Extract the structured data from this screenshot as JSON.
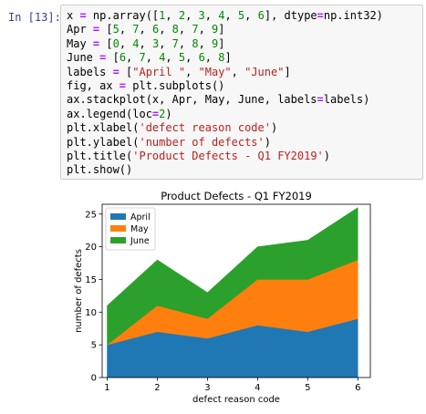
{
  "cell": {
    "prompt": "In [13]:",
    "code_lines": [
      "x = np.array([1, 2, 3, 4, 5, 6], dtype=np.int32)",
      "Apr = [5, 7, 6, 8, 7, 9]",
      "May = [0, 4, 3, 7, 8, 9]",
      "June = [6, 7, 4, 5, 6, 8]",
      "labels = [\"April \", \"May\", \"June\"]",
      "fig, ax = plt.subplots()",
      "ax.stackplot(x, Apr, May, June, labels=labels)",
      "ax.legend(loc=2)",
      "plt.xlabel('defect reason code')",
      "plt.ylabel('number of defects')",
      "plt.title('Product Defects - Q1 FY2019')",
      "plt.show()"
    ]
  },
  "chart_data": {
    "type": "area",
    "title": "Product Defects - Q1 FY2019",
    "xlabel": "defect reason code",
    "ylabel": "number of defects",
    "x": [
      1,
      2,
      3,
      4,
      5,
      6
    ],
    "xlim": [
      0.9,
      6.25
    ],
    "ylim": [
      0,
      26.5
    ],
    "xticks": [
      "1",
      "2",
      "3",
      "4",
      "5",
      "6"
    ],
    "yticks": [
      "0",
      "5",
      "10",
      "15",
      "20",
      "25"
    ],
    "stacked": true,
    "legend_position": "top-left",
    "series": [
      {
        "name": "April",
        "values": [
          5,
          7,
          6,
          8,
          7,
          9
        ],
        "color": "#1f77b4"
      },
      {
        "name": "May",
        "values": [
          0,
          4,
          3,
          7,
          8,
          9
        ],
        "color": "#ff7f0e"
      },
      {
        "name": "June",
        "values": [
          6,
          7,
          4,
          5,
          6,
          8
        ],
        "color": "#2ca02c"
      }
    ]
  }
}
